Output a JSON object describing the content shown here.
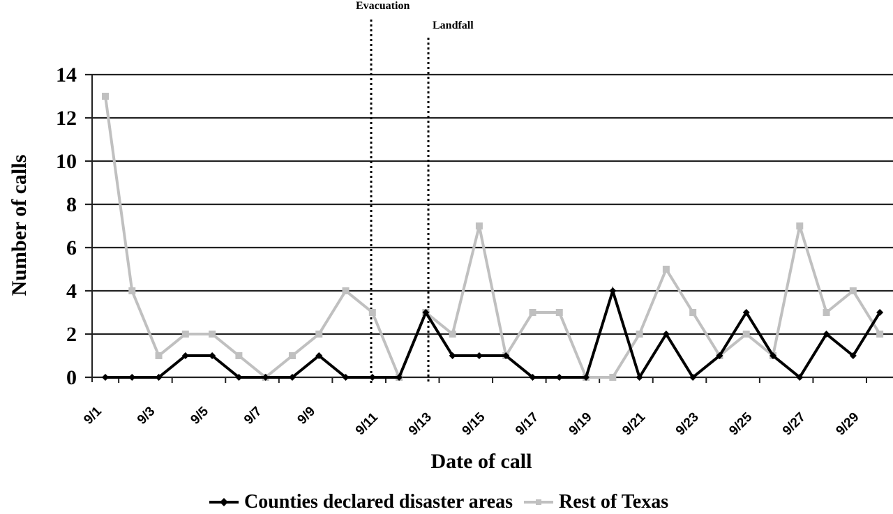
{
  "chart_data": {
    "type": "line",
    "title": "",
    "xlabel": "Date of call",
    "ylabel": "Number of calls",
    "ylim": [
      0,
      14
    ],
    "yticks": [
      0,
      2,
      4,
      6,
      8,
      10,
      12,
      14
    ],
    "grid": true,
    "legend_position": "bottom",
    "x": [
      "9/1",
      "9/2",
      "9/3",
      "9/4",
      "9/5",
      "9/6",
      "9/7",
      "9/8",
      "9/9",
      "9/10",
      "9/11",
      "9/12",
      "9/13",
      "9/14",
      "9/15",
      "9/16",
      "9/17",
      "9/18",
      "9/19",
      "9/20",
      "9/21",
      "9/22",
      "9/23",
      "9/24",
      "9/25",
      "9/26",
      "9/27",
      "9/28",
      "9/29",
      "9/30"
    ],
    "xtick_labels": [
      "9/1",
      "9/3",
      "9/5",
      "9/7",
      "9/9",
      "9/11",
      "9/13",
      "9/15",
      "9/17",
      "9/19",
      "9/21",
      "9/23",
      "9/25",
      "9/27",
      "9/29"
    ],
    "series": [
      {
        "name": "Counties declared disaster areas",
        "color": "#000000",
        "marker": "diamond",
        "values": [
          0,
          0,
          0,
          1,
          1,
          0,
          0,
          0,
          1,
          0,
          0,
          0,
          3,
          1,
          1,
          1,
          0,
          0,
          0,
          4,
          0,
          2,
          0,
          1,
          3,
          1,
          0,
          2,
          1,
          3
        ]
      },
      {
        "name": "Rest of Texas",
        "color": "#c0c0c0",
        "marker": "square",
        "values": [
          13,
          4,
          1,
          2,
          2,
          1,
          0,
          1,
          2,
          4,
          3,
          0,
          3,
          2,
          7,
          1,
          3,
          3,
          0,
          0,
          2,
          5,
          3,
          1,
          2,
          1,
          7,
          3,
          4,
          2
        ]
      }
    ],
    "annotations": [
      {
        "label": "Evacuation",
        "type": "vertical-dotted-line",
        "x_position": "between 9/11 and 9/12"
      },
      {
        "label": "Landfall",
        "type": "vertical-dotted-line",
        "x_position": "between 9/13 and 9/14"
      }
    ]
  },
  "labels": {
    "ylabel": "Number of calls",
    "xlabel": "Date of call",
    "evacuation": "Evacuation",
    "landfall": "Landfall",
    "legend_disaster": "Counties declared disaster areas",
    "legend_rest": "Rest of Texas"
  }
}
